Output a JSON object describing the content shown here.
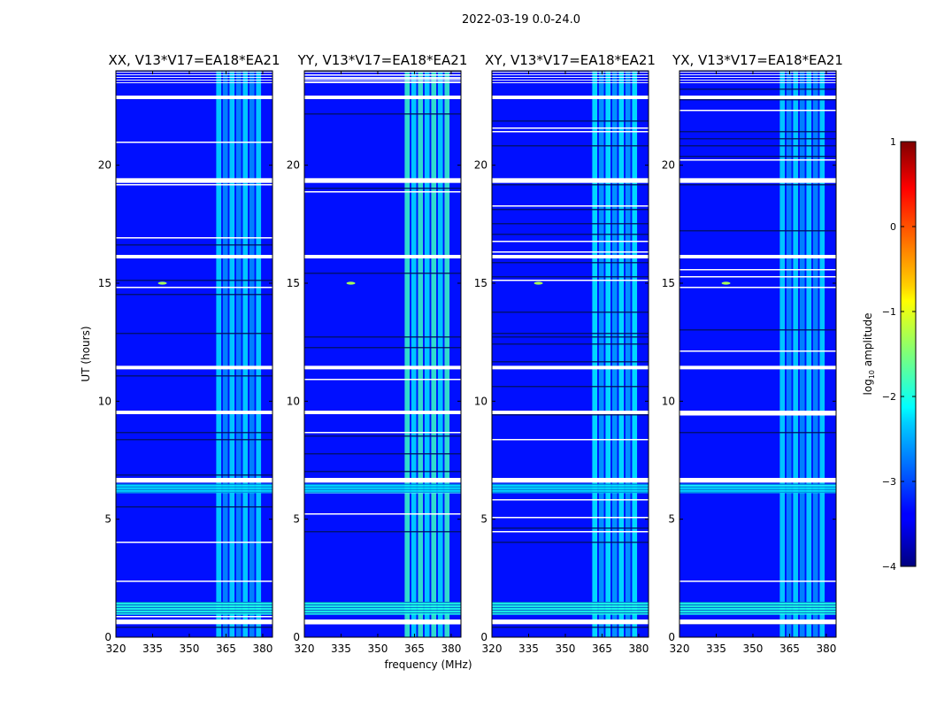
{
  "figure": {
    "suptitle": "2022-03-19 0.0-24.0",
    "xlabel": "frequency (MHz)",
    "ylabel": "UT (hours)"
  },
  "chart_data": {
    "type": "heatmap",
    "panels": [
      {
        "title": "XX, V13*V17=EA18*EA21",
        "polarization": "XX"
      },
      {
        "title": "YY, V13*V17=EA18*EA21",
        "polarization": "YY"
      },
      {
        "title": "XY, V13*V17=EA18*EA21",
        "polarization": "XY"
      },
      {
        "title": "YX, V13*V17=EA18*EA21",
        "polarization": "YX"
      }
    ],
    "xlim": [
      320,
      384
    ],
    "ylim": [
      0,
      24
    ],
    "xticks": [
      320,
      335,
      350,
      365,
      380
    ],
    "yticks": [
      0,
      5,
      10,
      15,
      20
    ],
    "colorbar": {
      "label": "log10 amplitude",
      "label_main": "log",
      "label_sub": "10",
      "label_rest": " amplitude",
      "range": [
        -4,
        1
      ],
      "ticks": [
        -4,
        -3,
        -2,
        -1,
        0,
        1
      ],
      "tick_labels": [
        "−4",
        "−3",
        "−2",
        "−1",
        "0",
        "1"
      ],
      "colormap": "jet"
    },
    "background_log_amplitude": -3.3,
    "rfi_band_mhz": [
      361,
      380
    ],
    "rfi_band_log_amplitude": {
      "XX": -2.4,
      "YY": -2.0,
      "XY": -2.3,
      "YX": -2.4
    },
    "flagged_gaps_ut_hours": [
      [
        0.55,
        0.75
      ],
      [
        6.55,
        6.75
      ],
      [
        9.45,
        9.6
      ],
      [
        11.35,
        11.5
      ],
      [
        16.05,
        16.2
      ],
      [
        19.25,
        19.45
      ],
      [
        22.8,
        22.95
      ]
    ],
    "strong_rows_ut_hours": [
      [
        0.95,
        1.5
      ],
      [
        6.1,
        6.5
      ]
    ],
    "point_source": {
      "freq_mhz": 339,
      "ut_hours": 15.0,
      "log_amplitude": -1.3
    }
  }
}
